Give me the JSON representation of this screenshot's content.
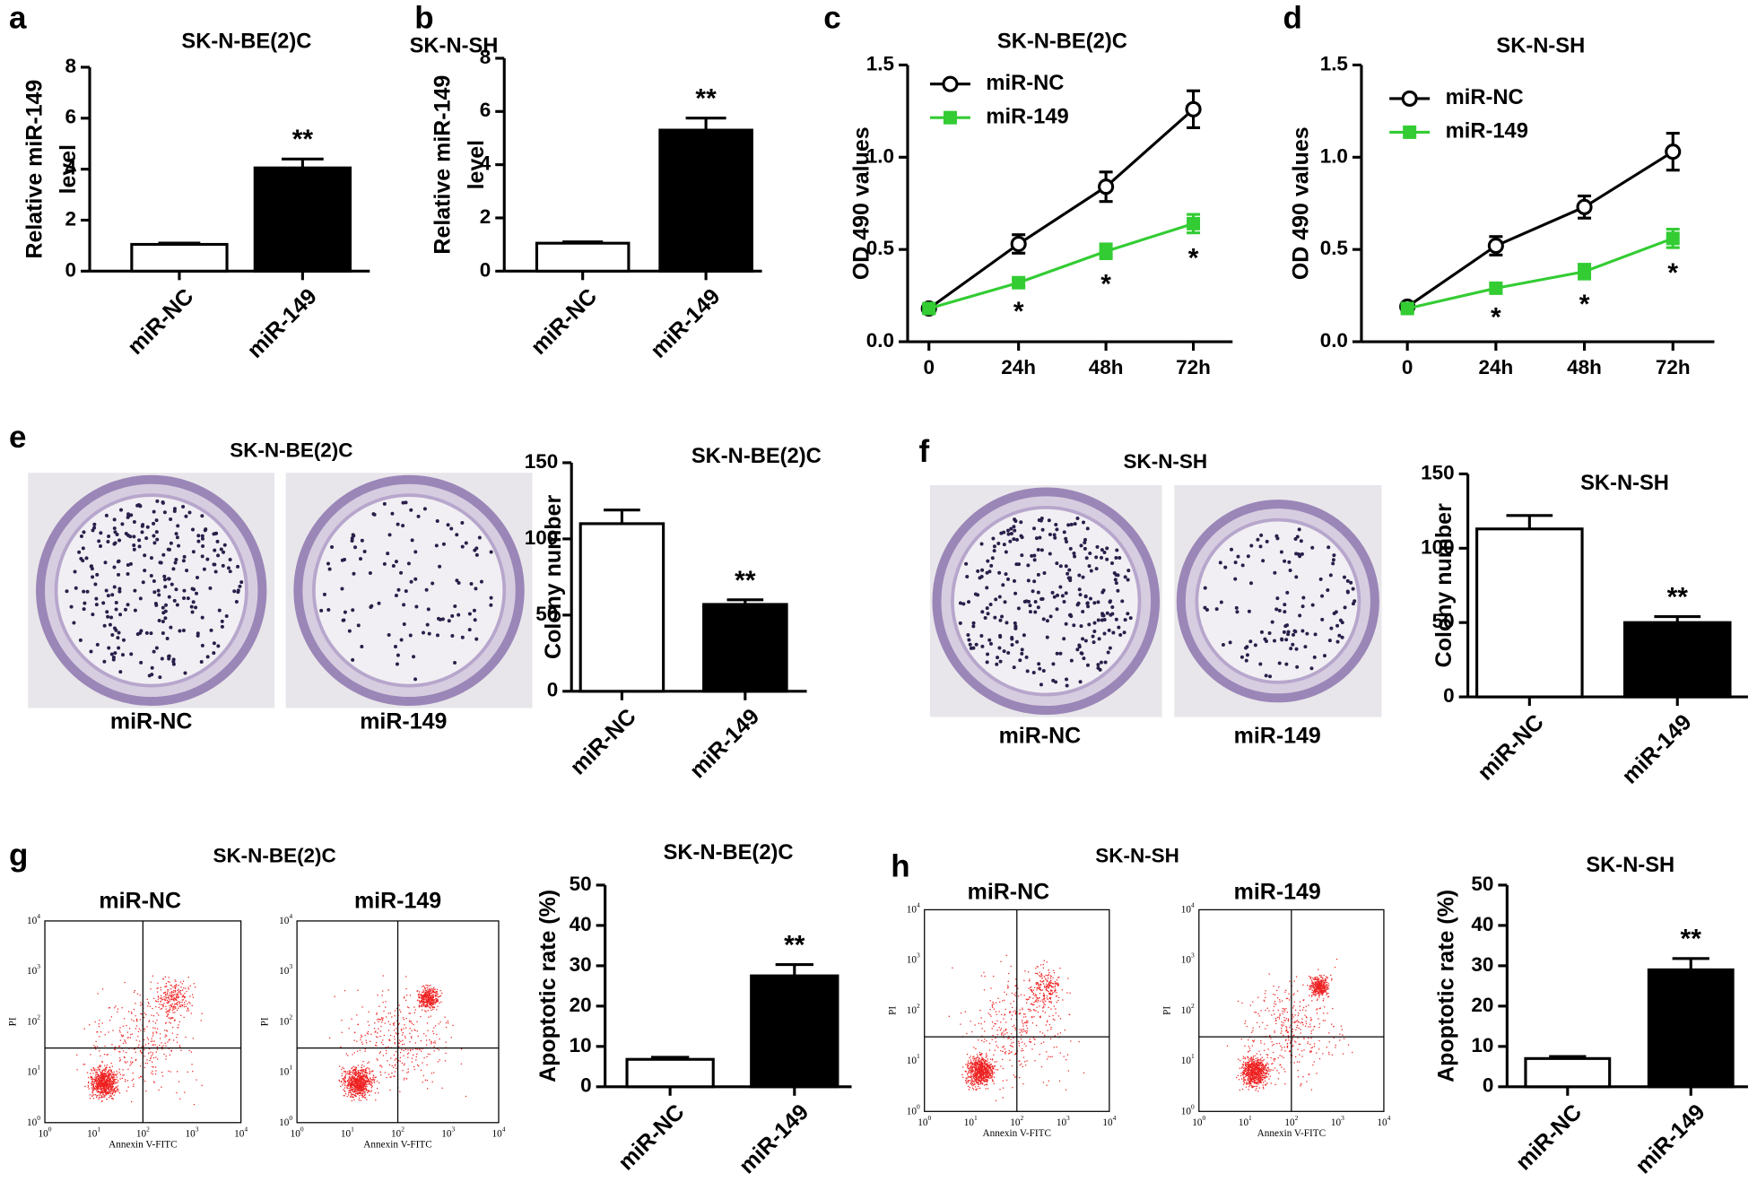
{
  "chart_data": [
    {
      "type": "bar",
      "title": "SK-N-BE(2)C",
      "ylabel": [
        "Relative miR-149",
        "level"
      ],
      "categories": [
        "miR-NC",
        "miR-149"
      ],
      "values": [
        1.05,
        4.05
      ],
      "errors": [
        0.05,
        0.35
      ],
      "value_annotations": [
        null,
        "**"
      ],
      "ylim": [
        0,
        8
      ],
      "yticks": [
        0,
        2,
        4,
        6,
        8
      ],
      "colors": [
        "#ffffff",
        "#000000"
      ]
    },
    {
      "type": "bar",
      "title": "SK-N-SH",
      "ylabel": [
        "Relative miR-149",
        "level"
      ],
      "categories": [
        "miR-NC",
        "miR-149"
      ],
      "values": [
        1.05,
        5.3
      ],
      "errors": [
        0.05,
        0.45
      ],
      "value_annotations": [
        null,
        "**"
      ],
      "ylim": [
        0,
        8
      ],
      "yticks": [
        0,
        2,
        4,
        6,
        8
      ],
      "colors": [
        "#ffffff",
        "#000000"
      ]
    },
    {
      "type": "line",
      "title": "SK-N-BE(2)C",
      "ylabel": [
        "OD 490 values"
      ],
      "x": [
        "0",
        "24h",
        "48h",
        "72h"
      ],
      "series": [
        {
          "name": "miR-NC",
          "color": "#000000",
          "marker": "circle",
          "values": [
            0.18,
            0.53,
            0.84,
            1.26
          ],
          "errors": [
            0.02,
            0.05,
            0.08,
            0.1
          ],
          "value_annotations": [
            null,
            null,
            null,
            null
          ]
        },
        {
          "name": "miR-149",
          "color": "#33cc33",
          "marker": "square",
          "values": [
            0.18,
            0.32,
            0.49,
            0.64
          ],
          "errors": [
            0.02,
            0.02,
            0.04,
            0.05
          ],
          "value_annotations": [
            null,
            "*",
            "*",
            "*"
          ]
        }
      ],
      "ylim": [
        0,
        1.5
      ],
      "yticks": [
        {
          "value": 0,
          "label": "0.0"
        },
        {
          "value": 0.5,
          "label": "0.5"
        },
        {
          "value": 1,
          "label": "1.0"
        },
        {
          "value": 1.5,
          "label": "1.5"
        }
      ],
      "legend": "top-left"
    },
    {
      "type": "line",
      "title": "SK-N-SH",
      "ylabel": [
        "OD 490 values"
      ],
      "x": [
        "0",
        "24h",
        "48h",
        "72h"
      ],
      "series": [
        {
          "name": "miR-NC",
          "color": "#000000",
          "marker": "circle",
          "values": [
            0.19,
            0.52,
            0.73,
            1.03
          ],
          "errors": [
            0.02,
            0.05,
            0.06,
            0.1
          ],
          "value_annotations": [
            null,
            null,
            null,
            null
          ]
        },
        {
          "name": "miR-149",
          "color": "#33cc33",
          "marker": "square",
          "values": [
            0.18,
            0.29,
            0.38,
            0.56
          ],
          "errors": [
            0.02,
            0.02,
            0.04,
            0.05
          ],
          "value_annotations": [
            null,
            "*",
            "*",
            "*"
          ]
        }
      ],
      "ylim": [
        0,
        1.5
      ],
      "yticks": [
        {
          "value": 0,
          "label": "0.0"
        },
        {
          "value": 0.5,
          "label": "0.5"
        },
        {
          "value": 1,
          "label": "1.0"
        },
        {
          "value": 1.5,
          "label": "1.5"
        }
      ],
      "legend": "top-left"
    },
    {
      "type": "bar",
      "title": "SK-N-BE(2)C",
      "ylabel": [
        "Colony number"
      ],
      "categories": [
        "miR-NC",
        "miR-149"
      ],
      "values": [
        110,
        57
      ],
      "errors": [
        9,
        3
      ],
      "value_annotations": [
        null,
        "**"
      ],
      "ylim": [
        0,
        150
      ],
      "yticks": [
        0,
        50,
        100,
        150
      ],
      "colors": [
        "#ffffff",
        "#000000"
      ]
    },
    {
      "type": "bar",
      "title": "SK-N-SH",
      "ylabel": [
        "Colony number"
      ],
      "categories": [
        "miR-NC",
        "miR-149"
      ],
      "values": [
        113,
        50
      ],
      "errors": [
        9,
        4
      ],
      "value_annotations": [
        null,
        "**"
      ],
      "ylim": [
        0,
        150
      ],
      "yticks": [
        0,
        50,
        100,
        150
      ],
      "colors": [
        "#ffffff",
        "#000000"
      ]
    },
    {
      "type": "bar",
      "title": "SK-N-BE(2)C",
      "ylabel": [
        "Apoptotic rate (%)"
      ],
      "categories": [
        "miR-NC",
        "miR-149"
      ],
      "values": [
        6.8,
        27.5
      ],
      "errors": [
        0.5,
        2.8
      ],
      "value_annotations": [
        null,
        "**"
      ],
      "ylim": [
        0,
        50
      ],
      "yticks": [
        0,
        10,
        20,
        30,
        40,
        50
      ],
      "colors": [
        "#ffffff",
        "#000000"
      ]
    },
    {
      "type": "bar",
      "title": "SK-N-SH",
      "ylabel": [
        "Apoptotic rate (%)"
      ],
      "categories": [
        "miR-NC",
        "miR-149"
      ],
      "values": [
        7,
        29
      ],
      "errors": [
        0.5,
        2.8
      ],
      "value_annotations": [
        null,
        "**"
      ],
      "ylim": [
        0,
        50
      ],
      "yticks": [
        0,
        10,
        20,
        30,
        40,
        50
      ],
      "colors": [
        "#ffffff",
        "#000000"
      ]
    }
  ],
  "figure": {
    "panel_letters": [
      "a",
      "b",
      "c",
      "d",
      "e",
      "f",
      "g",
      "h"
    ],
    "cell_lines": [
      "SK-N-BE(2)C",
      "SK-N-SH"
    ],
    "sample_labels": [
      "miR-NC",
      "miR-149"
    ],
    "flow_x_label": "Annexin V-FITC",
    "flow_y_label": "PI",
    "flow_tick_base": "10",
    "flow_tick_exponents": [
      "0",
      "1",
      "2",
      "3",
      "4"
    ]
  }
}
